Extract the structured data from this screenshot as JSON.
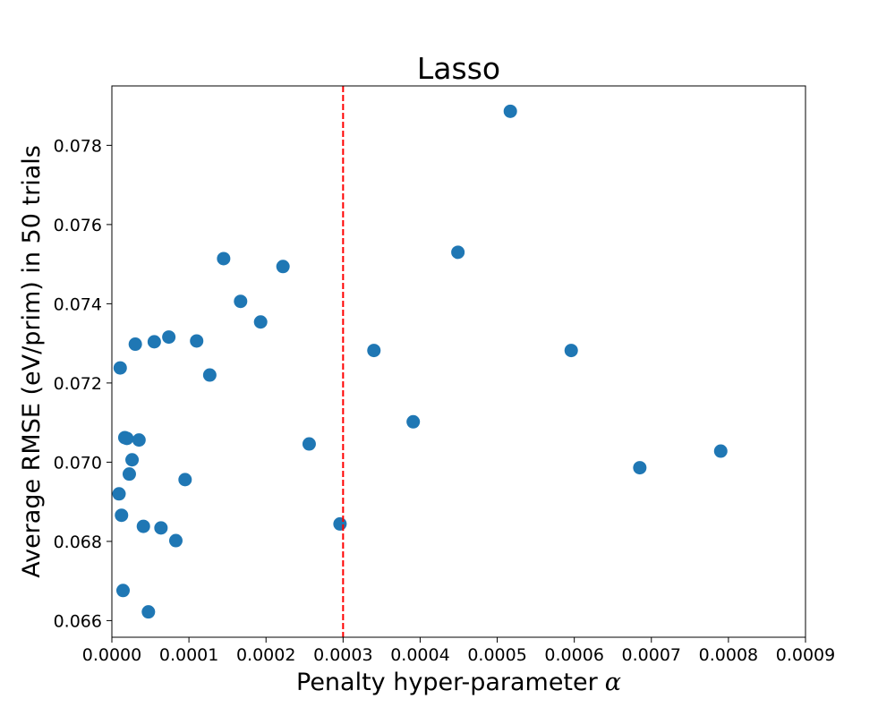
{
  "chart_data": {
    "type": "scatter",
    "title": "Lasso",
    "xlabel": "Penalty hyper-parameter",
    "xlabel_symbol": "α",
    "ylabel": "Average RMSE (eV/prim) in 50 trials",
    "xlim": [
      0.0,
      0.0009
    ],
    "ylim": [
      0.06558,
      0.0795
    ],
    "x_ticks": [
      0.0,
      0.0001,
      0.0002,
      0.0003,
      0.0004,
      0.0005,
      0.0006,
      0.0007,
      0.0008,
      0.0009
    ],
    "x_tick_labels": [
      "0.0000",
      "0.0001",
      "0.0002",
      "0.0003",
      "0.0004",
      "0.0005",
      "0.0006",
      "0.0007",
      "0.0008",
      "0.0009"
    ],
    "y_ticks": [
      0.066,
      0.068,
      0.07,
      0.072,
      0.074,
      0.076,
      0.078
    ],
    "y_tick_labels": [
      "0.066",
      "0.068",
      "0.070",
      "0.072",
      "0.074",
      "0.076",
      "0.078"
    ],
    "grid": false,
    "marker_color": "#1f77b4",
    "reference_line": {
      "x": 0.0003,
      "color": "#ff0000",
      "style": "dashed"
    },
    "points": [
      {
        "x": 9.3e-06,
        "y": 0.0692
      },
      {
        "x": 1.08e-05,
        "y": 0.07238
      },
      {
        "x": 1.25e-05,
        "y": 0.06866
      },
      {
        "x": 1.45e-05,
        "y": 0.06676
      },
      {
        "x": 1.68e-05,
        "y": 0.07062
      },
      {
        "x": 1.95e-05,
        "y": 0.0706
      },
      {
        "x": 2.26e-05,
        "y": 0.0697
      },
      {
        "x": 2.62e-05,
        "y": 0.07006
      },
      {
        "x": 3.04e-05,
        "y": 0.07298
      },
      {
        "x": 3.52e-05,
        "y": 0.07056
      },
      {
        "x": 4.09e-05,
        "y": 0.06838
      },
      {
        "x": 4.74e-05,
        "y": 0.06622
      },
      {
        "x": 5.5e-05,
        "y": 0.07304
      },
      {
        "x": 6.37e-05,
        "y": 0.06834
      },
      {
        "x": 7.39e-05,
        "y": 0.07316
      },
      {
        "x": 8.3e-05,
        "y": 0.06802
      },
      {
        "x": 9.5e-05,
        "y": 0.06956
      },
      {
        "x": 0.00011,
        "y": 0.07306
      },
      {
        "x": 0.000127,
        "y": 0.0722
      },
      {
        "x": 0.000145,
        "y": 0.07514
      },
      {
        "x": 0.000167,
        "y": 0.07406
      },
      {
        "x": 0.000193,
        "y": 0.07354
      },
      {
        "x": 0.000222,
        "y": 0.07494
      },
      {
        "x": 0.000256,
        "y": 0.07046
      },
      {
        "x": 0.000296,
        "y": 0.06844
      },
      {
        "x": 0.00034,
        "y": 0.07282
      },
      {
        "x": 0.000391,
        "y": 0.07102
      },
      {
        "x": 0.000449,
        "y": 0.0753
      },
      {
        "x": 0.000517,
        "y": 0.07886
      },
      {
        "x": 0.000596,
        "y": 0.07282
      },
      {
        "x": 0.000685,
        "y": 0.06986
      },
      {
        "x": 0.00079,
        "y": 0.07028
      }
    ]
  }
}
